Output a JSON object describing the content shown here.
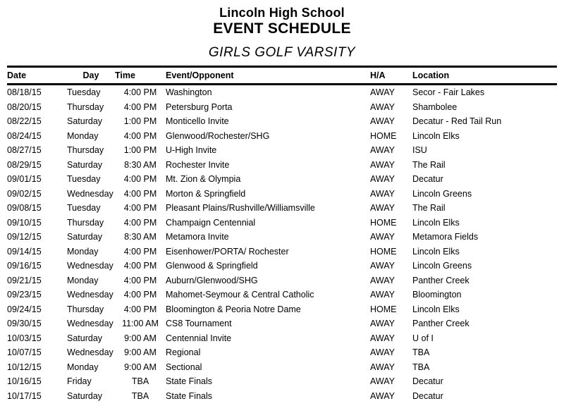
{
  "header": {
    "school": "Lincoln High School",
    "doc_title": "EVENT SCHEDULE",
    "team": "GIRLS GOLF VARSITY"
  },
  "colors": {
    "text": "#000000",
    "background": "#ffffff",
    "rule": "#000000"
  },
  "table": {
    "headers": [
      "Date",
      "Day",
      "Time",
      "Event/Opponent",
      "H/A",
      "Location"
    ],
    "rows": [
      {
        "date": "08/18/15",
        "day": "Tuesday",
        "time": "4:00 PM",
        "event": "Washington",
        "ha": "AWAY",
        "location": "Secor - Fair Lakes"
      },
      {
        "date": "08/20/15",
        "day": "Thursday",
        "time": "4:00 PM",
        "event": "Petersburg Porta",
        "ha": "AWAY",
        "location": "Shambolee"
      },
      {
        "date": "08/22/15",
        "day": "Saturday",
        "time": "1:00 PM",
        "event": "Monticello Invite",
        "ha": "AWAY",
        "location": "Decatur - Red Tail Run"
      },
      {
        "date": "08/24/15",
        "day": "Monday",
        "time": "4:00 PM",
        "event": "Glenwood/Rochester/SHG",
        "ha": "HOME",
        "location": "Lincoln Elks"
      },
      {
        "date": "08/27/15",
        "day": "Thursday",
        "time": "1:00 PM",
        "event": "U-High Invite",
        "ha": "AWAY",
        "location": "ISU"
      },
      {
        "date": "08/29/15",
        "day": "Saturday",
        "time": "8:30 AM",
        "event": "Rochester Invite",
        "ha": "AWAY",
        "location": "The Rail"
      },
      {
        "date": "09/01/15",
        "day": "Tuesday",
        "time": "4:00 PM",
        "event": "Mt. Zion & Olympia",
        "ha": "AWAY",
        "location": "Decatur"
      },
      {
        "date": "09/02/15",
        "day": "Wednesday",
        "time": "4:00 PM",
        "event": "Morton & Springfield",
        "ha": "AWAY",
        "location": "Lincoln Greens"
      },
      {
        "date": "09/08/15",
        "day": "Tuesday",
        "time": "4:00 PM",
        "event": "Pleasant Plains/Rushville/Williamsville",
        "ha": "AWAY",
        "location": "The Rail"
      },
      {
        "date": "09/10/15",
        "day": "Thursday",
        "time": "4:00 PM",
        "event": "Champaign Centennial",
        "ha": "HOME",
        "location": "Lincoln Elks"
      },
      {
        "date": "09/12/15",
        "day": "Saturday",
        "time": "8:30 AM",
        "event": "Metamora Invite",
        "ha": "AWAY",
        "location": "Metamora Fields"
      },
      {
        "date": "09/14/15",
        "day": "Monday",
        "time": "4:00 PM",
        "event": "Eisenhower/PORTA/ Rochester",
        "ha": "HOME",
        "location": "Lincoln Elks"
      },
      {
        "date": "09/16/15",
        "day": "Wednesday",
        "time": "4:00 PM",
        "event": "Glenwood & Springfield",
        "ha": "AWAY",
        "location": "Lincoln Greens"
      },
      {
        "date": "09/21/15",
        "day": "Monday",
        "time": "4:00 PM",
        "event": "Auburn/Glenwood/SHG",
        "ha": "AWAY",
        "location": "Panther Creek"
      },
      {
        "date": "09/23/15",
        "day": "Wednesday",
        "time": "4:00 PM",
        "event": "Mahomet-Seymour & Central Catholic",
        "ha": "AWAY",
        "location": "Bloomington"
      },
      {
        "date": "09/24/15",
        "day": "Thursday",
        "time": "4:00 PM",
        "event": "Bloomington & Peoria Notre Dame",
        "ha": "HOME",
        "location": "Lincoln Elks"
      },
      {
        "date": "09/30/15",
        "day": "Wednesday",
        "time": "11:00 AM",
        "event": "CS8 Tournament",
        "ha": "AWAY",
        "location": "Panther Creek"
      },
      {
        "date": "10/03/15",
        "day": "Saturday",
        "time": "9:00 AM",
        "event": "Centennial Invite",
        "ha": "AWAY",
        "location": "U of I"
      },
      {
        "date": "10/07/15",
        "day": "Wednesday",
        "time": "9:00 AM",
        "event": "Regional",
        "ha": "AWAY",
        "location": "TBA"
      },
      {
        "date": "10/12/15",
        "day": "Monday",
        "time": "9:00 AM",
        "event": "Sectional",
        "ha": "AWAY",
        "location": "TBA"
      },
      {
        "date": "10/16/15",
        "day": "Friday",
        "time": "TBA",
        "event": "State Finals",
        "ha": "AWAY",
        "location": "Decatur"
      },
      {
        "date": "10/17/15",
        "day": "Saturday",
        "time": "TBA",
        "event": "State Finals",
        "ha": "AWAY",
        "location": "Decatur"
      }
    ]
  }
}
